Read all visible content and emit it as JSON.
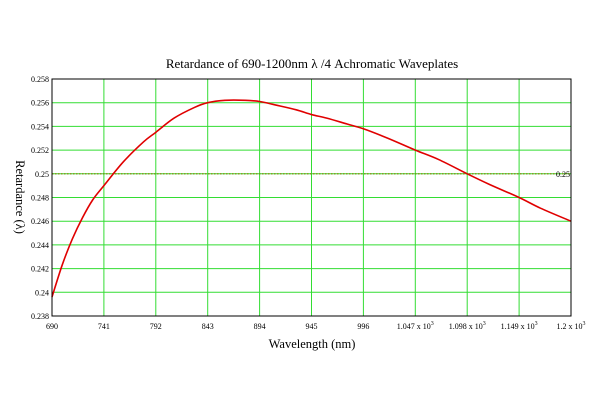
{
  "chart_data": {
    "type": "line",
    "title": "Retardance of 690-1200nm  λ /4 Achromatic Waveplates",
    "xlabel": "Wavelength (nm)",
    "ylabel": "Retardance (λ)",
    "xlim": [
      690,
      1200
    ],
    "ylim": [
      0.238,
      0.258
    ],
    "x_ticks": [
      690,
      741,
      792,
      843,
      894,
      945,
      996,
      1047,
      1098,
      1149,
      1200
    ],
    "x_tick_labels": [
      {
        "text": "690"
      },
      {
        "text": "741"
      },
      {
        "text": "792"
      },
      {
        "text": "843"
      },
      {
        "text": "894"
      },
      {
        "text": "945"
      },
      {
        "text": "996"
      },
      {
        "text": "1.047 x 10",
        "sup": "3"
      },
      {
        "text": "1.098 x 10",
        "sup": "3"
      },
      {
        "text": "1.149 x 10",
        "sup": "3"
      },
      {
        "text": "1.2 x 10",
        "sup": "3"
      }
    ],
    "y_ticks": [
      0.238,
      0.24,
      0.242,
      0.244,
      0.246,
      0.248,
      0.25,
      0.252,
      0.254,
      0.256,
      0.258
    ],
    "y_tick_labels": [
      "0.238",
      "0.24",
      "0.242",
      "0.244",
      "0.246",
      "0.248",
      "0.25",
      "0.252",
      "0.254",
      "0.256",
      "0.258"
    ],
    "grid": true,
    "reference_line": {
      "y": 0.25,
      "label": "0.25",
      "color": "#8a7a00"
    },
    "series": [
      {
        "color": "#e00000",
        "x": [
          690,
          700,
          710,
          720,
          730,
          741,
          760,
          780,
          792,
          810,
          830,
          843,
          860,
          880,
          894,
          910,
          930,
          945,
          960,
          980,
          996,
          1020,
          1047,
          1070,
          1098,
          1120,
          1149,
          1170,
          1200
        ],
        "y": [
          0.2396,
          0.2423,
          0.2445,
          0.2463,
          0.2478,
          0.249,
          0.251,
          0.2527,
          0.2535,
          0.2547,
          0.2556,
          0.256,
          0.2562,
          0.2562,
          0.2561,
          0.2558,
          0.2554,
          0.255,
          0.2547,
          0.2542,
          0.2538,
          0.253,
          0.252,
          0.2512,
          0.25,
          0.2491,
          0.248,
          0.2471,
          0.246
        ]
      }
    ],
    "colors": {
      "grid": "#33dd33",
      "frame": "#000000"
    }
  }
}
